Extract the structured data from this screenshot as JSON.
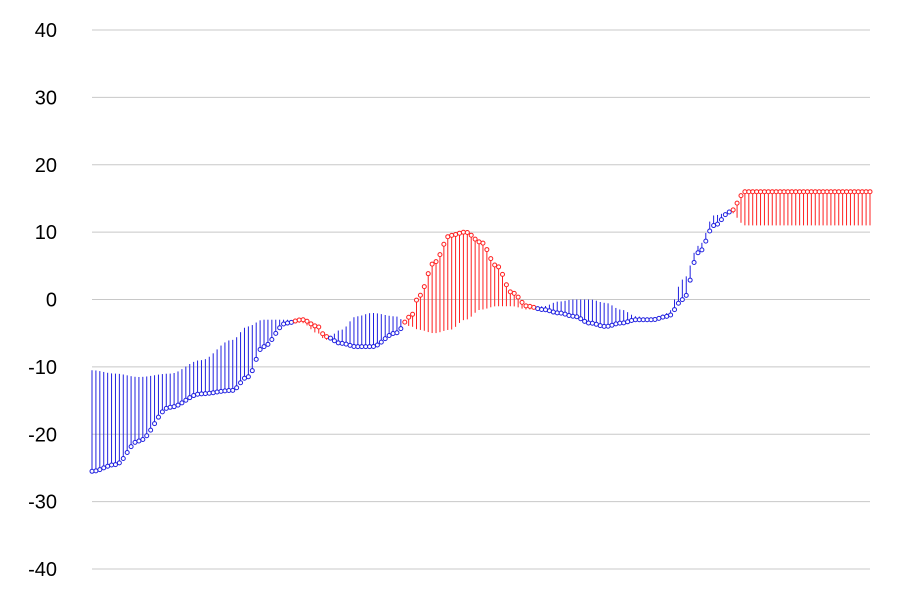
{
  "chart_data": {
    "type": "line",
    "title": "",
    "xlabel": "",
    "ylabel": "",
    "ylim": [
      -40,
      40
    ],
    "yticks": [
      40,
      30,
      20,
      10,
      0,
      -10,
      -20,
      -30,
      -40
    ],
    "ytick_labels": [
      "40",
      "30",
      "20",
      "10",
      "0",
      "-10",
      "-20",
      "-30",
      "-40"
    ],
    "grid": "horizontal",
    "x_range": [
      0,
      1
    ],
    "series": [
      {
        "role": "primary",
        "x": [
          0,
          0.03,
          0.06,
          0.1,
          0.14,
          0.18,
          0.2,
          0.22,
          0.25,
          0.27,
          0.29,
          0.3,
          0.32,
          0.34,
          0.36,
          0.39,
          0.41,
          0.42,
          0.44,
          0.46,
          0.48,
          0.5,
          0.52,
          0.54,
          0.56,
          0.58,
          0.6,
          0.62,
          0.64,
          0.66,
          0.68,
          0.7,
          0.72,
          0.74,
          0.76,
          0.78,
          0.8,
          0.82,
          0.84,
          0.86,
          0.88,
          0.9,
          0.92,
          0.94,
          0.96,
          0.98,
          1.0
        ],
        "values": [
          -25.5,
          -24.5,
          -21,
          -16,
          -14,
          -13.5,
          -11.5,
          -7,
          -3.5,
          -3,
          -4,
          -5.5,
          -6.5,
          -7,
          -7,
          -5,
          -2.5,
          0.5,
          5.5,
          9.5,
          10,
          8.5,
          5,
          1,
          -1,
          -1.5,
          -2,
          -2.5,
          -3.5,
          -4,
          -3.5,
          -3,
          -3,
          -2.5,
          0,
          7,
          11,
          13,
          16,
          16,
          16,
          16,
          16,
          16,
          16,
          16,
          16
        ]
      },
      {
        "role": "reference",
        "x": [
          0,
          0.03,
          0.06,
          0.1,
          0.14,
          0.18,
          0.2,
          0.22,
          0.25,
          0.27,
          0.29,
          0.3,
          0.32,
          0.34,
          0.36,
          0.39,
          0.41,
          0.42,
          0.44,
          0.46,
          0.48,
          0.5,
          0.52,
          0.54,
          0.56,
          0.58,
          0.6,
          0.62,
          0.64,
          0.66,
          0.68,
          0.7,
          0.72,
          0.74,
          0.76,
          0.78,
          0.8,
          0.82,
          0.84,
          0.86,
          0.88,
          0.9,
          0.92,
          0.94,
          0.96,
          0.98,
          1.0
        ],
        "values": [
          -10.5,
          -11,
          -11.5,
          -11,
          -9,
          -6,
          -4,
          -3,
          -3,
          -3.5,
          -5,
          -6,
          -4.5,
          -2.5,
          -2,
          -2.5,
          -4,
          -4.5,
          -5,
          -4.5,
          -3,
          -1.5,
          -1,
          -1,
          -1.5,
          -1,
          -0.3,
          0,
          0,
          -0.5,
          -1.5,
          -2.5,
          -3,
          -2,
          3,
          8,
          12.5,
          13,
          11,
          11,
          11,
          11,
          11,
          11,
          11,
          11,
          11
        ]
      }
    ],
    "colors": {
      "above_reference": "#ff2020",
      "below_reference": "#2020e0",
      "grid": "#c8c8c8",
      "tick_text": "#000000"
    }
  }
}
